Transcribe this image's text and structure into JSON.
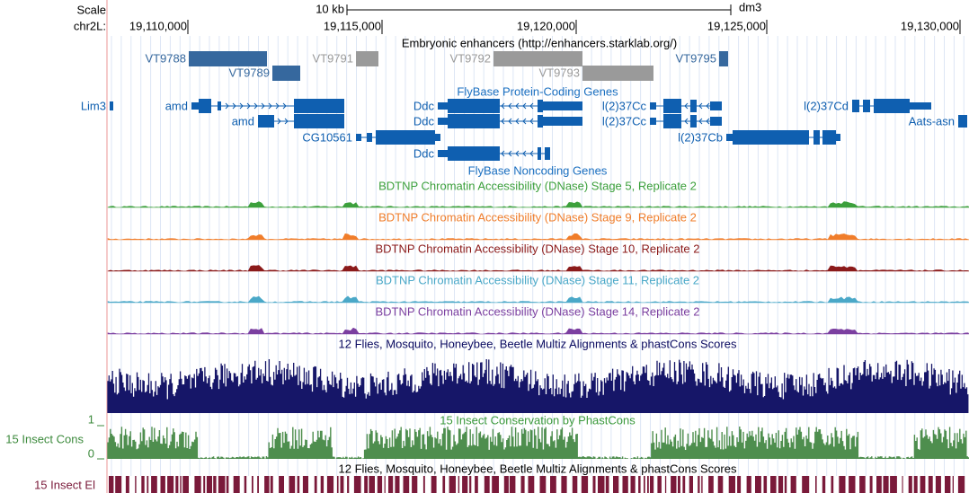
{
  "ruler": {
    "scale": "Scale",
    "chrom": "chr2L:",
    "scale_bar": "10 kb",
    "assembly": "dm3",
    "positions": [
      "19,110,000",
      "19,115,000",
      "19,120,000",
      "19,125,000",
      "19,130,000"
    ]
  },
  "enhancers": {
    "title": "Embryonic enhancers (http://enhancers.starklab.org/)",
    "items": [
      "VT9788",
      "VT9789",
      "VT9791",
      "VT9792",
      "VT9793",
      "VT9795"
    ]
  },
  "genes": {
    "title": "FlyBase Protein-Coding Genes",
    "items": [
      "Lim3",
      "amd",
      "amd",
      "CG10561",
      "Ddc",
      "Ddc",
      "Ddc",
      "l(2)37Cc",
      "l(2)37Cc",
      "l(2)37Cb",
      "l(2)37Cd",
      "Aats-asn"
    ],
    "noncoding_title": "FlyBase Noncoding Genes"
  },
  "dnase_tracks": [
    "BDTNP Chromatin Accessibility (DNase) Stage 5, Replicate 2",
    "BDTNP Chromatin Accessibility (DNase) Stage 9, Replicate 2",
    "BDTNP Chromatin Accessibility (DNase) Stage 10, Replicate 2",
    "BDTNP Chromatin Accessibility (DNase) Stage 11, Replicate 2",
    "BDTNP Chromatin Accessibility (DNase) Stage 14, Replicate 2"
  ],
  "multiz": {
    "title": "12 Flies, Mosquito, Honeybee, Beetle Multiz Alignments & phastCons Scores",
    "elements_title": "12 Flies, Mosquito, Honeybee, Beetle Multiz Alignments & phastCons Scores"
  },
  "conservation": {
    "title": "15 Insect Conservation by PhastCons",
    "side_label": "15 Insect Cons",
    "axis_max": 1,
    "axis_min": 0
  },
  "elements": {
    "side_label": "15 Insect El"
  }
}
